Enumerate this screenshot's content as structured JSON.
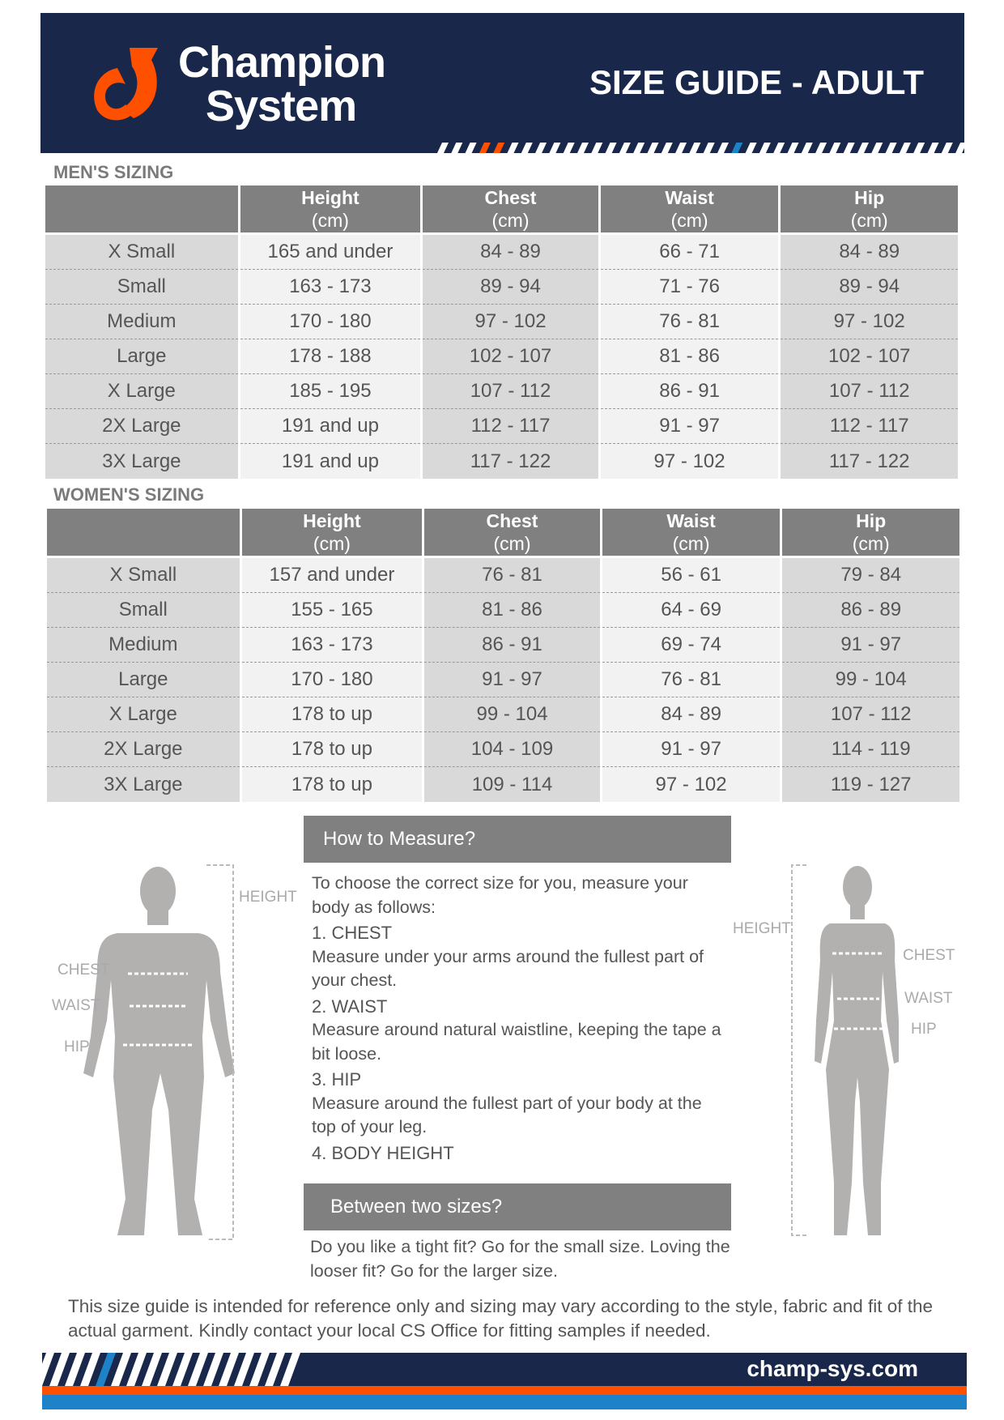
{
  "header": {
    "brand_line1": "Champion",
    "brand_line2": "System",
    "title": "SIZE GUIDE - ADULT",
    "colors": {
      "navy": "#19274a",
      "orange": "#ff5000",
      "blue": "#1e82c8"
    }
  },
  "mens": {
    "title": "MEN'S SIZING",
    "columns": [
      {
        "name": "Height",
        "unit": "(cm)"
      },
      {
        "name": "Chest",
        "unit": "(cm)"
      },
      {
        "name": "Waist",
        "unit": "(cm)"
      },
      {
        "name": "Hip",
        "unit": "(cm)"
      }
    ],
    "rows": [
      [
        "X Small",
        "165 and under",
        "84 - 89",
        "66 - 71",
        "84 - 89"
      ],
      [
        "Small",
        "163 - 173",
        "89 - 94",
        "71 - 76",
        "89 - 94"
      ],
      [
        "Medium",
        "170 - 180",
        "97 - 102",
        "76 - 81",
        "97 - 102"
      ],
      [
        "Large",
        "178 - 188",
        "102 - 107",
        "81 - 86",
        "102 - 107"
      ],
      [
        "X Large",
        "185 - 195",
        "107 - 112",
        "86 - 91",
        "107 - 112"
      ],
      [
        "2X Large",
        "191 and up",
        "112 - 117",
        "91 - 97",
        "112 - 117"
      ],
      [
        "3X Large",
        "191 and up",
        "117 - 122",
        "97 - 102",
        "117 - 122"
      ]
    ]
  },
  "womens": {
    "title": "WOMEN'S SIZING",
    "columns": [
      {
        "name": "Height",
        "unit": "(cm)"
      },
      {
        "name": "Chest",
        "unit": "(cm)"
      },
      {
        "name": "Waist",
        "unit": "(cm)"
      },
      {
        "name": "Hip",
        "unit": "(cm)"
      }
    ],
    "rows": [
      [
        "X Small",
        "157 and under",
        "76 - 81",
        "56 - 61",
        "79 - 84"
      ],
      [
        "Small",
        "155 - 165",
        "81 - 86",
        "64 - 69",
        "86 - 89"
      ],
      [
        "Medium",
        "163 - 173",
        "86 - 91",
        "69 - 74",
        "91 - 97"
      ],
      [
        "Large",
        "170 - 180",
        "91 - 97",
        "76 - 81",
        "99 - 104"
      ],
      [
        "X Large",
        "178 to up",
        "99 - 104",
        "84 - 89",
        "107 - 112"
      ],
      [
        "2X Large",
        "178 to up",
        "104 - 109",
        "91 - 97",
        "114 - 119"
      ],
      [
        "3X Large",
        "178 to up",
        "109 - 114",
        "97 - 102",
        "119 - 127"
      ]
    ]
  },
  "measure": {
    "title": "How to Measure?",
    "intro": "To choose the correct size for you, measure your body as follows:",
    "steps": [
      {
        "heading": "1. CHEST",
        "text": "Measure under your arms around the fullest part of your chest."
      },
      {
        "heading": "2. WAIST",
        "text": "Measure around natural waistline, keeping the tape a bit loose."
      },
      {
        "heading": "3. HIP",
        "text": "Measure around the fullest part of your body at the top of your leg."
      },
      {
        "heading": "4. BODY HEIGHT",
        "text": ""
      }
    ]
  },
  "between": {
    "title": "Between two sizes?",
    "text": "Do you like a tight fit?  Go for the small size.  Loving the looser fit? Go for the larger size."
  },
  "figure_labels": {
    "height": "HEIGHT",
    "chest": "CHEST",
    "waist": "WAIST",
    "hip": "HIP"
  },
  "disclaimer": "This size guide is intended for reference only and sizing may vary according to the style, fabric and fit of the actual garment. Kindly contact your local CS Office for fitting samples if needed.",
  "footer": {
    "url": "champ-sys.com"
  }
}
